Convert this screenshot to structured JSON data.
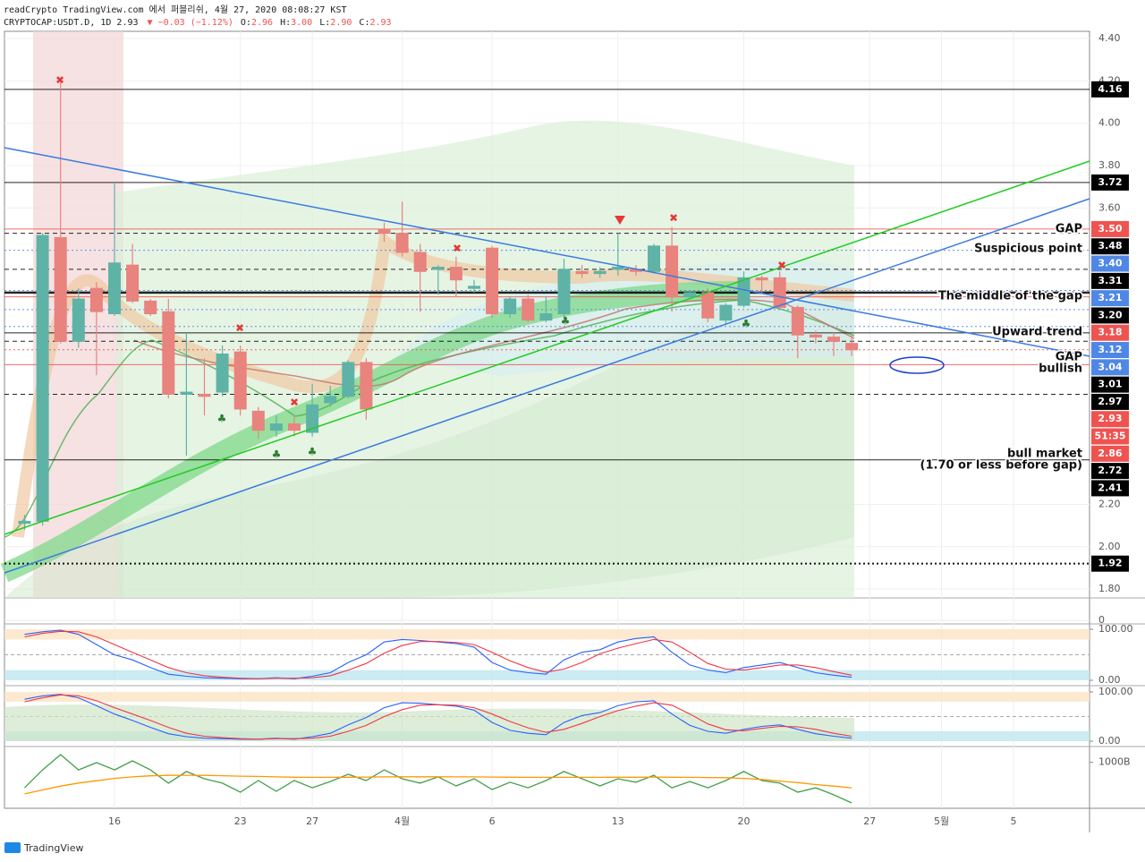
{
  "chart_data": {
    "type": "candlestick",
    "title": "readCrypto TradingView.com 에서 퍼블리쉬, 4월 27, 2020 08:08:27 KST",
    "symbol": "CRYPTOCAP:USDT.D, 1D 2.93",
    "change": "▼ −0.03 (−1.12%)",
    "ohlc_keys": [
      "O:",
      "H:",
      "L:",
      "C:"
    ],
    "ohlc_values": [
      "2.96",
      "3.00",
      "2.90",
      "2.93"
    ],
    "footer": "TradingView",
    "categories": [
      null,
      null,
      null,
      null,
      null,
      "16",
      null,
      null,
      null,
      null,
      null,
      null,
      "23",
      null,
      null,
      null,
      "27",
      null,
      null,
      null,
      null,
      "4월",
      null,
      null,
      null,
      null,
      "6",
      null,
      null,
      null,
      null,
      null,
      null,
      "13",
      null,
      null,
      null,
      null,
      null,
      null,
      "20",
      null,
      null,
      null,
      null,
      null,
      null,
      "27",
      null,
      null,
      null,
      "5월",
      null,
      null,
      null,
      "5",
      null,
      null,
      null
    ],
    "open": [
      2.11,
      2.12,
      3.46,
      2.97,
      3.22,
      3.1,
      3.33,
      3.16,
      3.11,
      2.72,
      2.72,
      2.73,
      2.92,
      2.64,
      2.55,
      2.58,
      2.54,
      2.68,
      2.71,
      2.87,
      3.5,
      3.48,
      3.39,
      3.31,
      3.32,
      3.22,
      3.41,
      3.1,
      3.17,
      3.07,
      3.1,
      3.3,
      3.29,
      3.31,
      3.31,
      3.3,
      3.42,
      3.18,
      3.2,
      3.07,
      3.14,
      3.27,
      3.27,
      3.13,
      3.0,
      2.99,
      2.96,
      null,
      null,
      null,
      null,
      null,
      null,
      null,
      null,
      null,
      null,
      null,
      null
    ],
    "high": [
      2.15,
      3.48,
      4.2,
      3.22,
      3.25,
      3.72,
      3.43,
      3.17,
      3.17,
      3.01,
      2.89,
      2.95,
      2.95,
      2.66,
      2.62,
      2.62,
      2.77,
      2.76,
      2.88,
      2.89,
      3.53,
      3.63,
      3.43,
      3.33,
      3.37,
      3.26,
      3.42,
      3.18,
      3.19,
      3.18,
      3.36,
      3.33,
      3.32,
      3.48,
      3.33,
      3.43,
      3.51,
      3.21,
      3.22,
      3.15,
      3.3,
      3.28,
      3.3,
      3.14,
      3.02,
      3.01,
      3.0,
      null,
      null,
      null,
      null,
      null,
      null,
      null,
      null,
      null,
      null,
      null,
      null
    ],
    "low": [
      2.08,
      2.1,
      2.96,
      2.94,
      2.81,
      3.09,
      3.15,
      3.09,
      2.7,
      2.43,
      2.62,
      2.71,
      2.62,
      2.51,
      2.52,
      2.52,
      2.52,
      2.66,
      2.7,
      2.6,
      3.44,
      3.37,
      3.11,
      3.19,
      3.18,
      3.2,
      3.08,
      3.08,
      3.06,
      3.06,
      3.08,
      3.27,
      3.27,
      3.28,
      3.28,
      3.29,
      3.11,
      3.17,
      3.06,
      3.05,
      3.13,
      3.2,
      3.12,
      2.89,
      2.96,
      2.9,
      2.9,
      null,
      null,
      null,
      null,
      null,
      null,
      null,
      null,
      null,
      null,
      null,
      null
    ],
    "close": [
      2.12,
      3.47,
      2.97,
      3.17,
      3.11,
      3.34,
      3.16,
      3.1,
      2.72,
      2.73,
      2.71,
      2.91,
      2.65,
      2.55,
      2.58,
      2.55,
      2.67,
      2.71,
      2.87,
      2.65,
      3.48,
      3.39,
      3.3,
      3.32,
      3.26,
      3.23,
      3.1,
      3.17,
      3.07,
      3.1,
      3.31,
      3.29,
      3.3,
      3.32,
      3.3,
      3.42,
      3.18,
      3.2,
      3.08,
      3.14,
      3.27,
      3.26,
      3.13,
      3.0,
      2.99,
      2.97,
      2.93,
      null,
      null,
      null,
      null,
      null,
      null,
      null,
      null,
      null,
      null,
      null,
      null
    ],
    "up_color": "#5fb3a6",
    "down_color": "#e8837e",
    "ylim": [
      1.758,
      4.434
    ],
    "yticks": [
      {
        "value": 4.4,
        "label": "4.40"
      },
      {
        "value": 4.2,
        "label": "4.20"
      },
      {
        "value": 4,
        "label": "4.00"
      },
      {
        "value": 3.8,
        "label": "3.80"
      },
      {
        "value": 3.6,
        "label": "3.60"
      },
      {
        "value": 2.2,
        "label": "2.20"
      },
      {
        "value": 2,
        "label": "2.00"
      },
      {
        "value": 1.8,
        "label": "1.80"
      }
    ],
    "grid": true,
    "levels": [
      {
        "value": 4.16,
        "label": "4.16",
        "color": "#000000",
        "line": "solid"
      },
      {
        "value": 3.72,
        "label": "3.72",
        "color": "#000000",
        "line": "solid"
      },
      {
        "value": 3.5,
        "label": "3.50",
        "color": "#ef5350",
        "line": "solid"
      },
      {
        "value": 3.48,
        "label": "3.48",
        "color": "#000000",
        "line": "dashed"
      },
      {
        "value": 3.4,
        "label": "3.40",
        "color": "#4f87e6",
        "line": "dotted"
      },
      {
        "value": 3.31,
        "label": "3.31",
        "color": "#000000",
        "line": "dashed"
      },
      {
        "value": 3.21,
        "label": "3.21",
        "color": "#4f87e6",
        "line": "dotted"
      },
      {
        "value": 3.2,
        "label": "3.20",
        "color": "#000000",
        "line": "thick"
      },
      {
        "value": 3.18,
        "label": "3.18",
        "color": "#ef5350",
        "line": "solid"
      },
      {
        "value": 3.12,
        "label": "3.12",
        "color": "#4f87e6",
        "line": "dotted"
      },
      {
        "value": 3.04,
        "label": "3.04",
        "color": "#4f87e6",
        "line": "dotted"
      },
      {
        "value": 3.01,
        "label": "3.01",
        "color": "#000000",
        "line": "solid"
      },
      {
        "value": 2.97,
        "label": "2.97",
        "color": "#000000",
        "line": "dashed"
      },
      {
        "value": 2.93,
        "label": "2.93",
        "color": "#ef5350",
        "line": "dotted"
      },
      {
        "value": 2.86,
        "label": "2.86",
        "color": "#ef5350",
        "line": "solid"
      },
      {
        "value": 2.72,
        "label": "2.72",
        "color": "#000000",
        "line": "dashed"
      },
      {
        "value": 2.41,
        "label": "2.41",
        "color": "#000000",
        "line": "solid"
      },
      {
        "value": 1.92,
        "label": "1.92",
        "color": "#000000",
        "line": "dotted"
      }
    ],
    "countdown": "51:35",
    "annotations": [
      "GAP",
      "Suspicious point",
      "The middle of the gap",
      "Upward trend",
      "GAP",
      "bullish",
      "bull market",
      "(1.70 or less before gap)"
    ],
    "volume_yticks": [
      0
    ],
    "stoch_panes": [
      {
        "ylim": [
          -10.5,
          107
        ],
        "yticks": [
          {
            "value": 100,
            "label": "100.00"
          },
          {
            "value": 0,
            "label": "0.00"
          }
        ],
        "series": [
          {
            "color": "#2962ff",
            "values": [
              90,
              95,
              98,
              90,
              70,
              50,
              40,
              25,
              12,
              8,
              5,
              4,
              3,
              3,
              5,
              3,
              8,
              15,
              35,
              50,
              75,
              80,
              78,
              75,
              72,
              65,
              35,
              20,
              15,
              12,
              40,
              55,
              60,
              75,
              82,
              85,
              55,
              30,
              20,
              15,
              25,
              30,
              35,
              25,
              15,
              10,
              6,
              null,
              null,
              null,
              null,
              null,
              null,
              null,
              null,
              null,
              null,
              null,
              null
            ]
          },
          {
            "color": "#f23645",
            "values": [
              85,
              92,
              96,
              95,
              85,
              70,
              55,
              40,
              25,
              15,
              9,
              6,
              4,
              3,
              4,
              4,
              5,
              9,
              20,
              33,
              53,
              68,
              76,
              76,
              74,
              70,
              55,
              38,
              25,
              16,
              22,
              35,
              52,
              63,
              72,
              80,
              75,
              55,
              33,
              22,
              20,
              25,
              30,
              30,
              25,
              17,
              10,
              null,
              null,
              null,
              null,
              null,
              null,
              null,
              null,
              null,
              null,
              null,
              null
            ]
          }
        ]
      },
      {
        "ylim": [
          -10.9,
          109
        ],
        "yticks": [
          {
            "value": 100,
            "label": "100.00"
          },
          {
            "value": 0,
            "label": "0.00"
          }
        ],
        "series": [
          {
            "color": "#2962ff",
            "values": [
              85,
              92,
              95,
              88,
              72,
              55,
              42,
              28,
              15,
              9,
              6,
              5,
              4,
              4,
              6,
              4,
              9,
              16,
              33,
              48,
              68,
              78,
              77,
              74,
              71,
              63,
              38,
              22,
              16,
              13,
              38,
              52,
              58,
              72,
              80,
              82,
              55,
              32,
              20,
              16,
              24,
              30,
              33,
              24,
              15,
              10,
              6,
              null,
              null,
              null,
              null,
              null,
              null,
              null,
              null,
              null,
              null,
              null,
              null
            ]
          },
          {
            "color": "#f23645",
            "values": [
              80,
              88,
              94,
              92,
              82,
              68,
              55,
              42,
              28,
              16,
              10,
              7,
              5,
              4,
              5,
              5,
              6,
              10,
              20,
              32,
              50,
              64,
              73,
              74,
              73,
              68,
              55,
              40,
              27,
              18,
              24,
              36,
              50,
              62,
              71,
              78,
              73,
              55,
              35,
              23,
              21,
              26,
              30,
              29,
              24,
              16,
              10,
              null,
              null,
              null,
              null,
              null,
              null,
              null,
              null,
              null,
              null,
              null,
              null
            ]
          }
        ]
      }
    ],
    "momentum": {
      "ylim": [
        700,
        1080
      ],
      "yticks": [
        {
          "value": 1000,
          "label": "1000B"
        }
      ],
      "series": [
        {
          "color": "#43a047",
          "values": [
            834,
            951,
            1051,
            951,
            998,
            951,
            1010,
            951,
            864,
            940,
            893,
            864,
            805,
            881,
            811,
            881,
            834,
            875,
            922,
            881,
            951,
            893,
            864,
            905,
            846,
            893,
            823,
            870,
            834,
            881,
            940,
            893,
            846,
            893,
            870,
            916,
            834,
            875,
            834,
            881,
            940,
            881,
            864,
            805,
            834,
            788,
            735,
            null,
            null,
            null,
            null,
            null,
            null,
            null,
            null,
            null,
            null,
            null,
            null
          ]
        },
        {
          "color": "#ff9800",
          "values": [
            794,
            820,
            845,
            865,
            880,
            895,
            905,
            912,
            915,
            916,
            915,
            913,
            910,
            908,
            905,
            903,
            902,
            902,
            903,
            904,
            905,
            906,
            906,
            906,
            905,
            905,
            904,
            903,
            902,
            902,
            902,
            902,
            902,
            903,
            903,
            904,
            903,
            902,
            901,
            900,
            895,
            888,
            878,
            868,
            855,
            845,
            834,
            null,
            null,
            null,
            null,
            null,
            null,
            null,
            null,
            null,
            null,
            null,
            null
          ]
        }
      ]
    }
  }
}
